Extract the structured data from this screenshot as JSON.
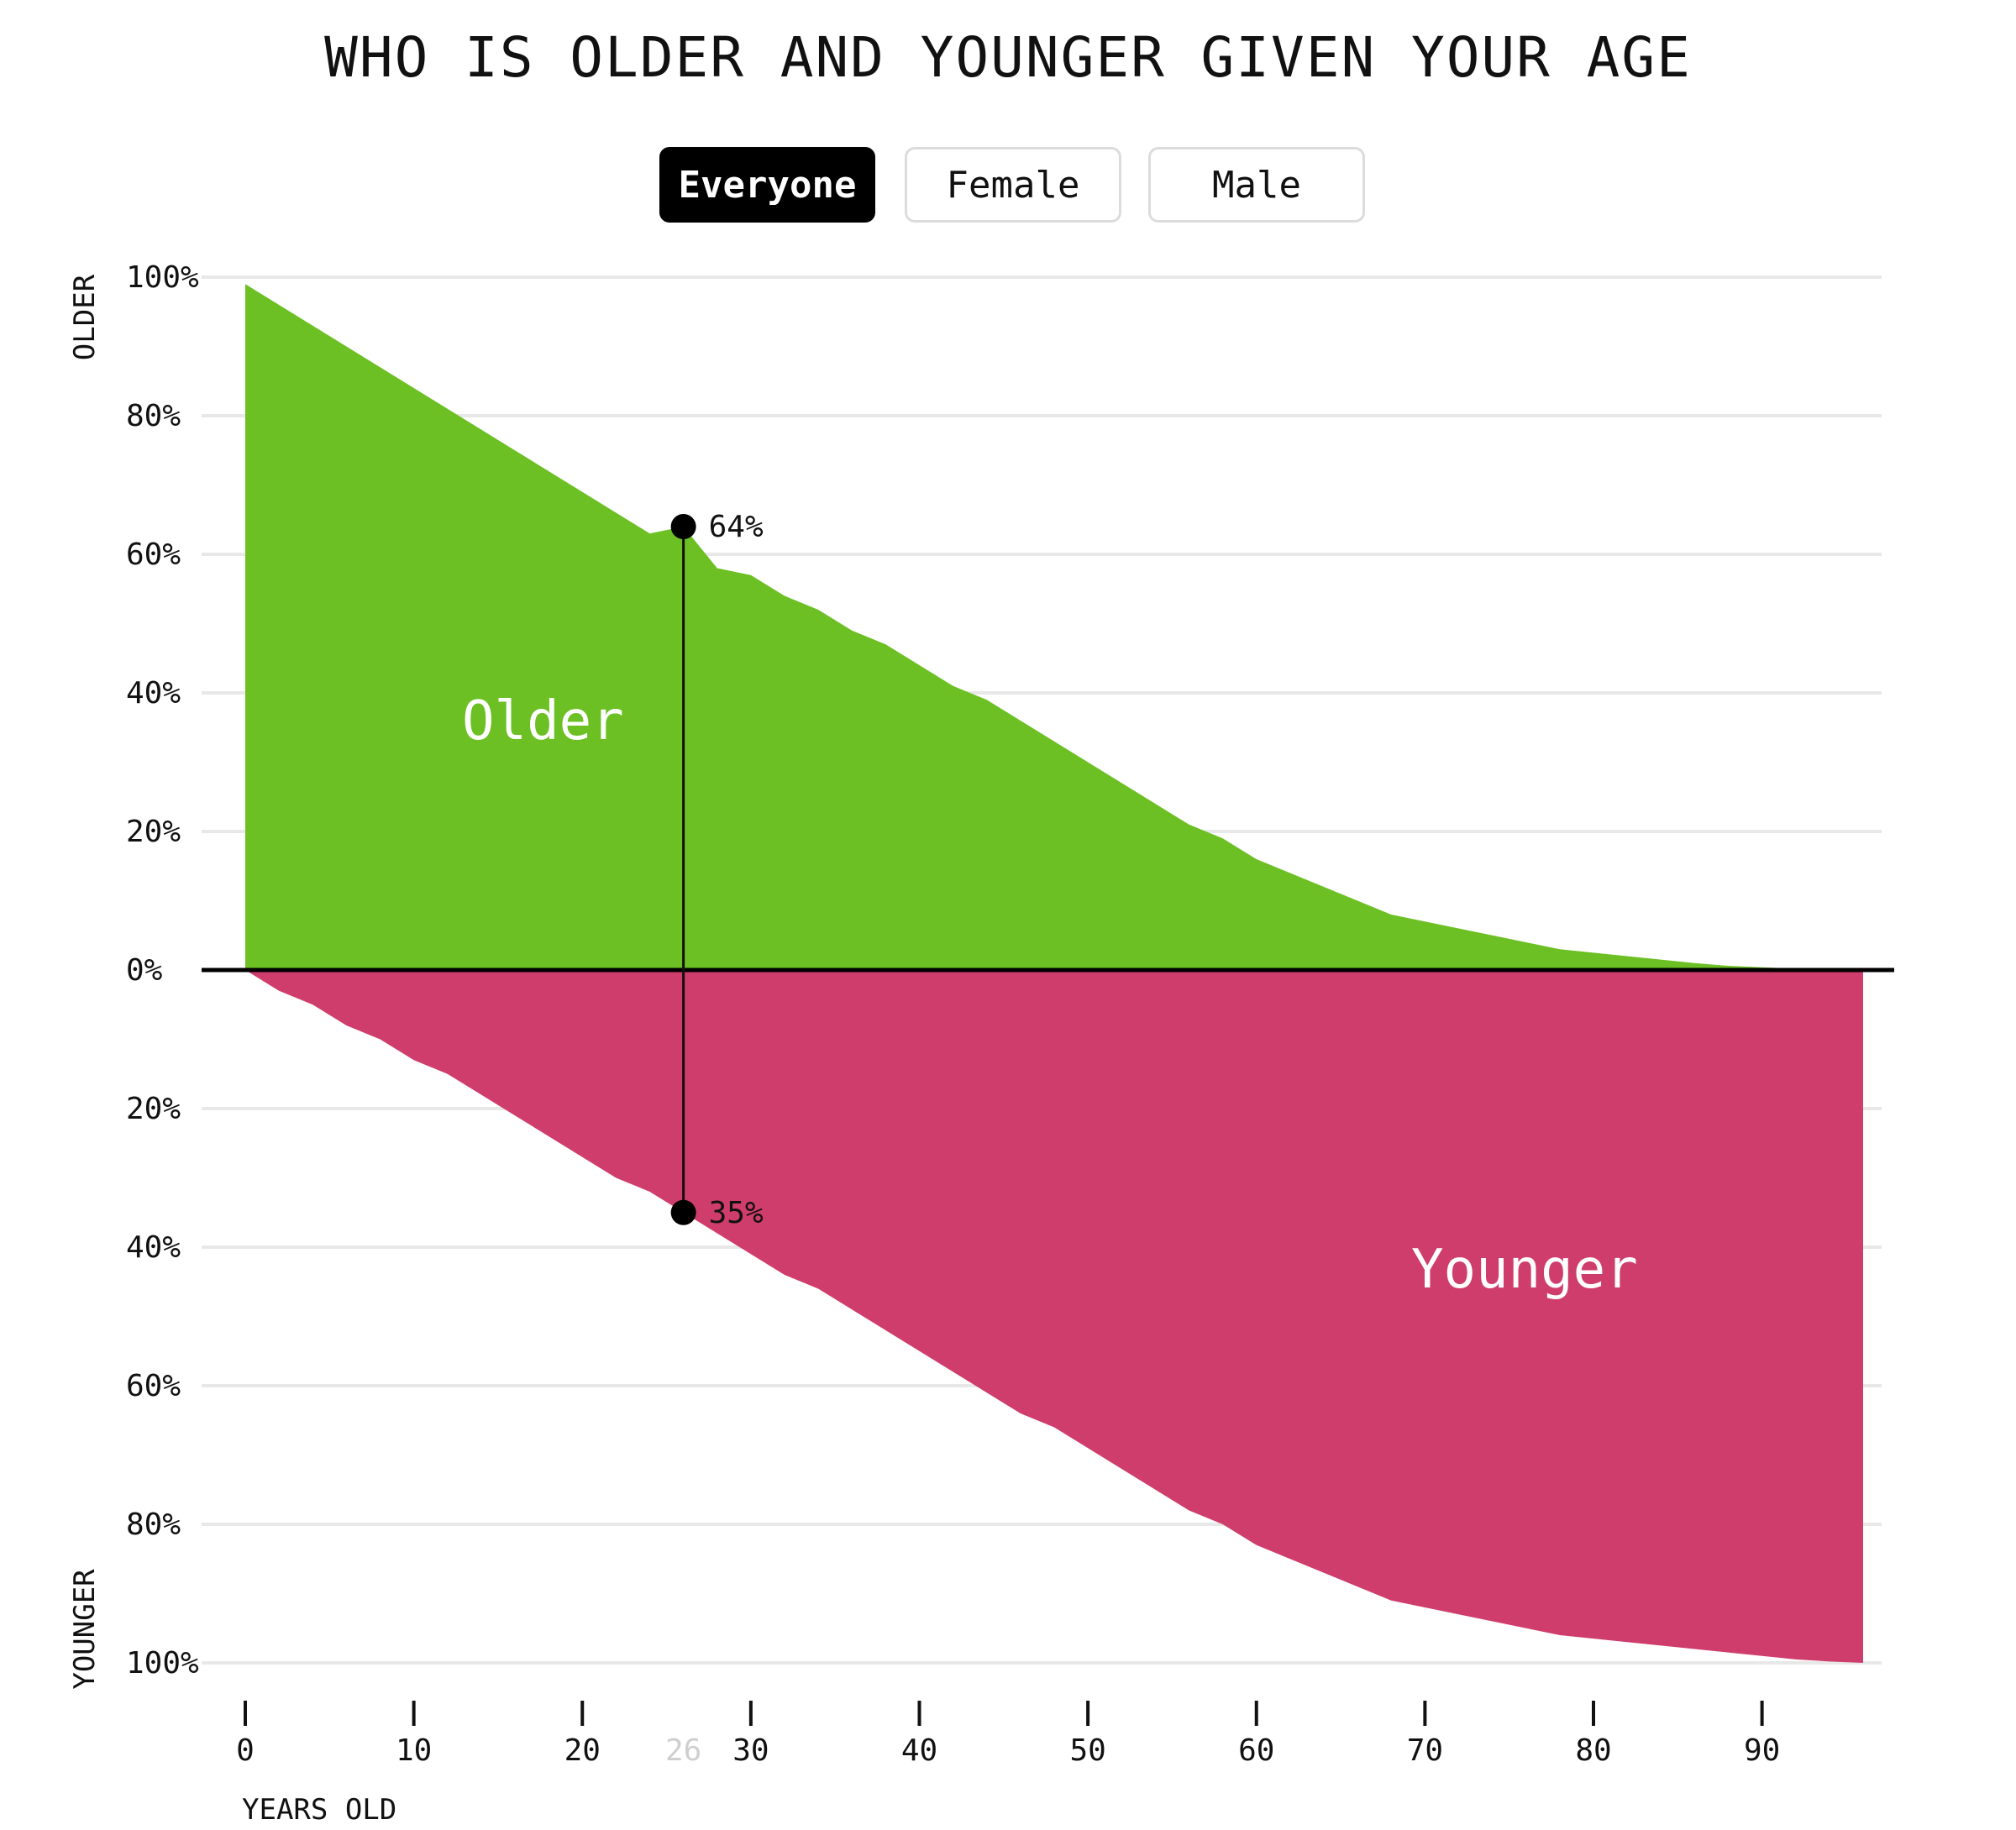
{
  "title": "WHO IS OLDER AND YOUNGER GIVEN YOUR AGE",
  "filters": [
    {
      "label": "Everyone",
      "active": true
    },
    {
      "label": "Female",
      "active": false
    },
    {
      "label": "Male",
      "active": false
    }
  ],
  "colors": {
    "older": "#6cc024",
    "younger": "#cf3d6d",
    "grid": "#e8e8e8",
    "axis": "#000000",
    "highlight_tick": "#cfcfcf"
  },
  "chart_data": {
    "type": "area",
    "xlabel": "YEARS OLD",
    "ylabel_top": "OLDER",
    "ylabel_bottom": "YOUNGER",
    "xlim": [
      0,
      96
    ],
    "ylim": [
      -100,
      100
    ],
    "x_ticks": [
      0,
      10,
      20,
      30,
      40,
      50,
      60,
      70,
      80,
      90
    ],
    "y_tick_labels": [
      {
        "value": 100,
        "label": "100%"
      },
      {
        "value": 80,
        "label": "80%"
      },
      {
        "value": 60,
        "label": "60%"
      },
      {
        "value": 40,
        "label": "40%"
      },
      {
        "value": 20,
        "label": "20%"
      },
      {
        "value": 0,
        "label": "0%"
      },
      {
        "value": -20,
        "label": "20%"
      },
      {
        "value": -40,
        "label": "40%"
      },
      {
        "value": -60,
        "label": "60%"
      },
      {
        "value": -80,
        "label": "80%"
      },
      {
        "value": -100,
        "label": "100%"
      }
    ],
    "x": [
      0,
      2,
      4,
      6,
      8,
      10,
      12,
      14,
      16,
      18,
      20,
      22,
      24,
      26,
      28,
      30,
      32,
      34,
      36,
      38,
      40,
      42,
      44,
      46,
      48,
      50,
      52,
      54,
      56,
      58,
      60,
      62,
      64,
      66,
      68,
      70,
      72,
      74,
      76,
      78,
      80,
      82,
      84,
      86,
      88,
      90,
      92,
      94,
      96
    ],
    "series": [
      {
        "name": "Older",
        "values": [
          99,
          96,
          93,
          90,
          87,
          84,
          81,
          78,
          75,
          72,
          69,
          66,
          63,
          64,
          58,
          57,
          54,
          52,
          49,
          47,
          44,
          41,
          39,
          36,
          33,
          30,
          27,
          24,
          21,
          19,
          16,
          14,
          12,
          10,
          8,
          7,
          6,
          5,
          4,
          3,
          2.5,
          2,
          1.5,
          1,
          0.6,
          0.4,
          0.2,
          0.1,
          0
        ]
      },
      {
        "name": "Younger",
        "values": [
          0,
          3,
          5,
          8,
          10,
          13,
          15,
          18,
          21,
          24,
          27,
          30,
          32,
          35,
          38,
          41,
          44,
          46,
          49,
          52,
          55,
          58,
          61,
          64,
          66,
          69,
          72,
          75,
          78,
          80,
          83,
          85,
          87,
          89,
          91,
          92,
          93,
          94,
          95,
          96,
          96.5,
          97,
          97.5,
          98,
          98.5,
          99,
          99.5,
          99.8,
          100
        ]
      }
    ],
    "highlight": {
      "x": 26,
      "x_label": "26",
      "older": 64,
      "older_label": "64%",
      "younger": 35,
      "younger_label": "35%"
    },
    "area_labels": {
      "older": "Older",
      "younger": "Younger"
    }
  }
}
